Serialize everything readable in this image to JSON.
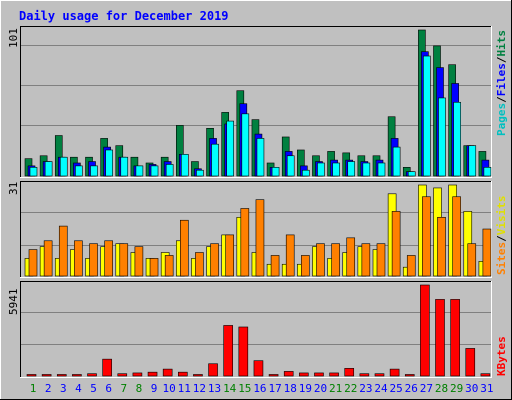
{
  "title": "Daily usage for December 2019",
  "days": [
    "1",
    "2",
    "3",
    "4",
    "5",
    "6",
    "7",
    "8",
    "9",
    "10",
    "11",
    "12",
    "13",
    "14",
    "15",
    "16",
    "17",
    "18",
    "19",
    "20",
    "21",
    "22",
    "23",
    "24",
    "25",
    "26",
    "27",
    "28",
    "29",
    "30",
    "31"
  ],
  "weekend_days": [
    1,
    7,
    8,
    14,
    15,
    21,
    22,
    28,
    29
  ],
  "colors": {
    "background": "#c0c0c0",
    "hits": "#008040",
    "files": "#0000ff",
    "pages": "#00ffff",
    "visits": "#ffff00",
    "sites": "#ff8000",
    "kbytes": "#ff0000",
    "title": "#0000ff",
    "weekend_label": "#008000",
    "weekday_label": "#0000ff"
  },
  "legend_right_top": [
    "Pages",
    "/",
    "Files",
    "/",
    "Hits"
  ],
  "legend_right_mid": [
    "Sites",
    "/",
    "Visits"
  ],
  "legend_right_bot": [
    "KBytes"
  ],
  "chart_data": [
    {
      "type": "bar",
      "name": "hits-files-pages",
      "ymax_label": "101",
      "ylim": [
        0,
        101
      ],
      "grid": true,
      "categories": [
        "1",
        "2",
        "3",
        "4",
        "5",
        "6",
        "7",
        "8",
        "9",
        "10",
        "11",
        "12",
        "13",
        "14",
        "15",
        "16",
        "17",
        "18",
        "19",
        "20",
        "21",
        "22",
        "23",
        "24",
        "25",
        "26",
        "27",
        "28",
        "29",
        "30",
        "31"
      ],
      "series": [
        {
          "name": "Hits",
          "values": [
            12,
            14,
            28,
            13,
            13,
            26,
            21,
            13,
            9,
            13,
            35,
            10,
            33,
            44,
            59,
            39,
            9,
            27,
            18,
            14,
            17,
            16,
            14,
            14,
            41,
            6,
            101,
            90,
            77,
            21,
            17
          ]
        },
        {
          "name": "Files",
          "values": [
            7,
            10,
            13,
            9,
            10,
            20,
            13,
            7,
            8,
            10,
            15,
            5,
            26,
            36,
            50,
            29,
            6,
            17,
            7,
            10,
            11,
            11,
            10,
            11,
            26,
            3,
            86,
            75,
            64,
            21,
            11
          ]
        },
        {
          "name": "Pages",
          "values": [
            6,
            10,
            13,
            7,
            7,
            18,
            13,
            7,
            7,
            8,
            15,
            4,
            22,
            38,
            43,
            26,
            6,
            14,
            4,
            9,
            9,
            10,
            9,
            9,
            20,
            3,
            83,
            54,
            51,
            21,
            6
          ]
        }
      ]
    },
    {
      "type": "bar",
      "name": "visits-sites",
      "ymax_label": "31",
      "ylim": [
        0,
        31
      ],
      "grid": true,
      "categories": [
        "1",
        "2",
        "3",
        "4",
        "5",
        "6",
        "7",
        "8",
        "9",
        "10",
        "11",
        "12",
        "13",
        "14",
        "15",
        "16",
        "17",
        "18",
        "19",
        "20",
        "21",
        "22",
        "23",
        "24",
        "25",
        "26",
        "27",
        "28",
        "29",
        "30",
        "31"
      ],
      "series": [
        {
          "name": "Visits",
          "values": [
            6,
            10,
            6,
            9,
            6,
            10,
            11,
            8,
            6,
            8,
            12,
            6,
            10,
            14,
            20,
            8,
            4,
            4,
            4,
            10,
            6,
            8,
            10,
            9,
            28,
            3,
            31,
            30,
            31,
            22,
            5
          ]
        },
        {
          "name": "Sites",
          "values": [
            9,
            12,
            17,
            12,
            11,
            12,
            11,
            10,
            6,
            7,
            19,
            8,
            11,
            14,
            23,
            26,
            7,
            14,
            7,
            11,
            11,
            13,
            11,
            11,
            22,
            7,
            27,
            20,
            27,
            11,
            16
          ]
        }
      ]
    },
    {
      "type": "bar",
      "name": "kbytes",
      "ymax_label": "5941",
      "ylim": [
        0,
        5941
      ],
      "grid": true,
      "categories": [
        "1",
        "2",
        "3",
        "4",
        "5",
        "6",
        "7",
        "8",
        "9",
        "10",
        "11",
        "12",
        "13",
        "14",
        "15",
        "16",
        "17",
        "18",
        "19",
        "20",
        "21",
        "22",
        "23",
        "24",
        "25",
        "26",
        "27",
        "28",
        "29",
        "30",
        "31"
      ],
      "series": [
        {
          "name": "KBytes",
          "values": [
            100,
            100,
            100,
            100,
            150,
            1100,
            150,
            200,
            250,
            450,
            250,
            100,
            800,
            3300,
            3200,
            1000,
            100,
            300,
            200,
            200,
            200,
            500,
            150,
            150,
            450,
            100,
            5941,
            5000,
            5000,
            1800,
            150
          ]
        }
      ]
    }
  ]
}
